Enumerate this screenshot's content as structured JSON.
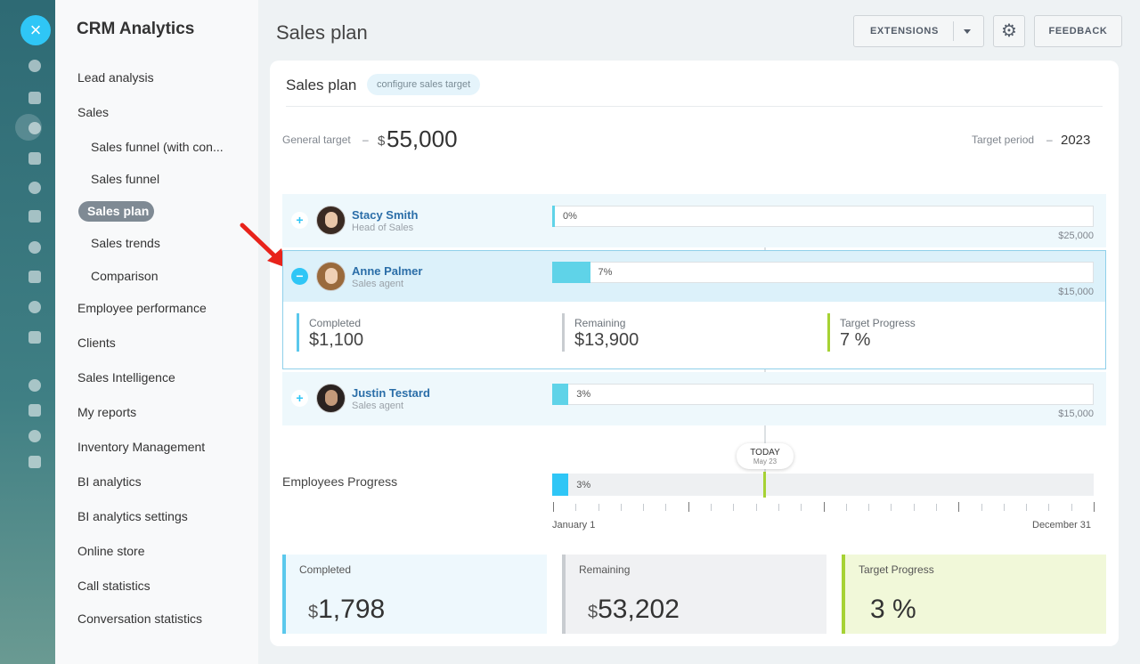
{
  "sidebar": {
    "title": "CRM Analytics",
    "active": 4,
    "items": [
      {
        "label": "Lead analysis",
        "sub": false
      },
      {
        "label": "Sales",
        "sub": false
      },
      {
        "label": "Sales funnel (with con...",
        "sub": true
      },
      {
        "label": "Sales funnel",
        "sub": true
      },
      {
        "label": "Sales plan",
        "sub": true
      },
      {
        "label": "Sales trends",
        "sub": true
      },
      {
        "label": "Comparison",
        "sub": true
      },
      {
        "label": "Employee performance",
        "sub": false
      },
      {
        "label": "Clients",
        "sub": false
      },
      {
        "label": "Sales Intelligence",
        "sub": false
      },
      {
        "label": "My reports",
        "sub": false
      },
      {
        "label": "Inventory Management",
        "sub": false
      },
      {
        "label": "BI analytics",
        "sub": false
      },
      {
        "label": "BI analytics settings",
        "sub": false
      },
      {
        "label": "Online store",
        "sub": false
      },
      {
        "label": "Call statistics",
        "sub": false
      },
      {
        "label": "Conversation statistics",
        "sub": false
      }
    ]
  },
  "header": {
    "title": "Sales plan",
    "buttons": [
      "EXTENSIONS",
      "FEEDBACK"
    ]
  },
  "card": {
    "title": "Sales plan",
    "tag": "configure sales target",
    "general_target": {
      "label": "General target",
      "dash": "–",
      "currency": "$",
      "value": "55,000"
    },
    "target_period": {
      "label": "Target period",
      "dash": "–",
      "value": "2023"
    },
    "employees": [
      {
        "name": "Stacy Smith",
        "role": "Head of Sales",
        "progress": 0,
        "progress_label": "0%",
        "target": "$25,000",
        "toggle": "+"
      },
      {
        "name": "Anne Palmer",
        "role": "Sales agent",
        "progress": 7,
        "progress_label": "7%",
        "target": "$15,000",
        "toggle": "−",
        "details": [
          {
            "label": "Completed",
            "currency": "$",
            "value": "1,100"
          },
          {
            "label": "Remaining",
            "currency": "$",
            "value": "13,900"
          },
          {
            "label": "Target Progress",
            "currency": "",
            "value": "7 %"
          }
        ]
      },
      {
        "name": "Justin Testard",
        "role": "Sales agent",
        "progress": 3,
        "progress_label": "3%",
        "target": "$15,000",
        "toggle": "+"
      }
    ],
    "today": {
      "label": "TODAY",
      "date": "May 23"
    },
    "overall": {
      "label": "Employees Progress",
      "progress": 3,
      "progress_label": "3%",
      "start": "January 1",
      "end": "December 31"
    },
    "summary": [
      {
        "label": "Completed",
        "currency": "$",
        "value": "1,798"
      },
      {
        "label": "Remaining",
        "currency": "$",
        "value": "53,202"
      },
      {
        "label": "Target Progress",
        "currency": "",
        "value": "3 %"
      }
    ]
  }
}
